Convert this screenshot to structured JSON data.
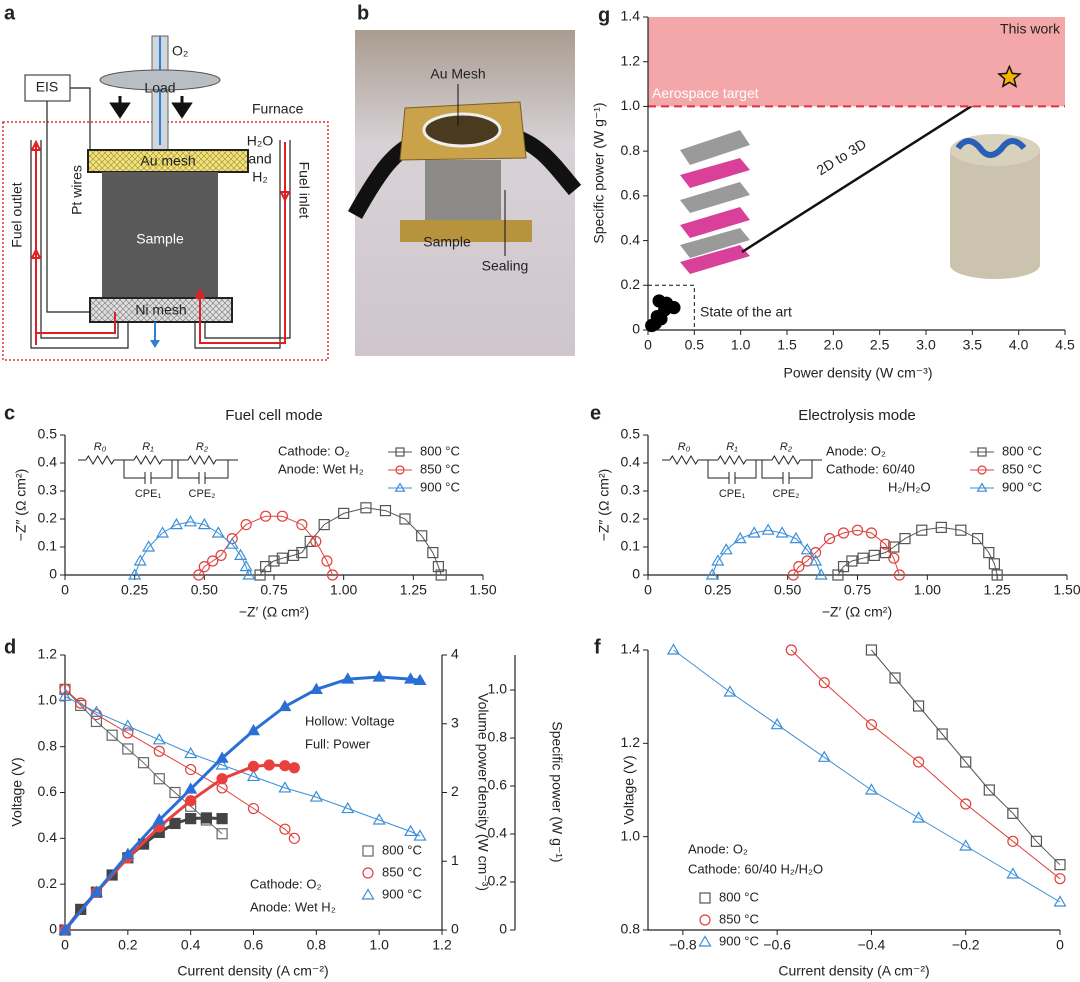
{
  "diagram_a": {
    "label": "a",
    "o2": "O₂",
    "load": "Load",
    "eis": "EIS",
    "furnace": "Furnace",
    "au_mesh": "Au mesh",
    "gas": [
      "H₂O",
      "and",
      "H₂"
    ],
    "fuel_outlet": "Fuel outlet",
    "pt_wires": "Pt wires",
    "fuel_inlet": "Fuel inlet",
    "sample": "Sample",
    "ni_mesh": "Ni mesh"
  },
  "photo_b": {
    "label": "b",
    "au_mesh": "Au Mesh",
    "sample": "Sample",
    "sealing": "Sealing"
  },
  "chart_data": [
    {
      "label": "g",
      "type": "scatter",
      "xlabel": "Power density (W cm⁻³)",
      "ylabel": "Specific power (W g⁻¹)",
      "xlim": [
        0,
        4.5
      ],
      "ylim": [
        0,
        1.4
      ],
      "xticks": [
        0,
        0.5,
        {
          "value": 1,
          "label": "1.0"
        },
        1.5,
        {
          "value": 2,
          "label": "2.0"
        },
        2.5,
        {
          "value": 3,
          "label": "3.0"
        },
        3.5,
        {
          "value": 4,
          "label": "4.0"
        },
        4.5
      ],
      "yticks": [
        0,
        0.2,
        0.4,
        0.6,
        0.8,
        {
          "value": 1,
          "label": "1.0"
        },
        1.2,
        1.4
      ],
      "target": 1.0,
      "target_label": "Aerospace target",
      "target_color": "#f4a7a9",
      "arrow_label": "2D to 3D",
      "series": [
        {
          "name": "State of the art",
          "color": "#000000",
          "marker": "dot",
          "x": [
            0.04,
            0.08,
            0.1,
            0.14,
            0.18,
            0.2,
            0.28,
            0.12
          ],
          "values": [
            0.02,
            0.03,
            0.06,
            0.05,
            0.09,
            0.12,
            0.1,
            0.13
          ]
        },
        {
          "name": "This work",
          "color": "#f5b400",
          "marker": "star",
          "x": [
            3.9
          ],
          "values": [
            1.13
          ]
        }
      ]
    },
    {
      "label": "c",
      "type": "line",
      "title": "Fuel cell mode",
      "xlabel": "−Z′ (Ω cm²)",
      "ylabel": "−Z″ (Ω cm²)",
      "xlim": [
        0,
        1.5
      ],
      "ylim": [
        0,
        0.5
      ],
      "xticks": [
        0,
        0.25,
        {
          "value": 0.5,
          "label": "0.50"
        },
        0.75,
        {
          "value": 1,
          "label": "1.00"
        },
        1.25,
        {
          "value": 1.5,
          "label": "1.50"
        }
      ],
      "yticks": [
        0,
        0.1,
        0.2,
        0.3,
        0.4,
        0.5
      ],
      "circuit": [
        "R₀",
        "R₁",
        "R₂",
        "CPE₁",
        "CPE₂"
      ],
      "notes": [
        "Cathode: O₂",
        "Anode: Wet H₂"
      ],
      "series": [
        {
          "name": "800 °C",
          "color": "#555555",
          "marker": "square",
          "x": [
            0.7,
            0.72,
            0.75,
            0.78,
            0.82,
            0.85,
            0.88,
            0.93,
            1.0,
            1.08,
            1.15,
            1.22,
            1.28,
            1.32,
            1.34,
            1.35
          ],
          "values": [
            0,
            0.03,
            0.05,
            0.06,
            0.07,
            0.08,
            0.12,
            0.18,
            0.22,
            0.24,
            0.23,
            0.2,
            0.14,
            0.08,
            0.03,
            0
          ]
        },
        {
          "name": "850 °C",
          "color": "#e0403c",
          "marker": "circle",
          "x": [
            0.48,
            0.5,
            0.53,
            0.56,
            0.6,
            0.65,
            0.72,
            0.78,
            0.85,
            0.9,
            0.94,
            0.96
          ],
          "values": [
            0,
            0.03,
            0.05,
            0.07,
            0.13,
            0.18,
            0.21,
            0.21,
            0.18,
            0.12,
            0.05,
            0
          ]
        },
        {
          "name": "900 °C",
          "color": "#3a8fd8",
          "marker": "triangle",
          "x": [
            0.25,
            0.27,
            0.3,
            0.35,
            0.4,
            0.45,
            0.5,
            0.55,
            0.6,
            0.63,
            0.65,
            0.66
          ],
          "values": [
            0,
            0.05,
            0.1,
            0.15,
            0.18,
            0.19,
            0.18,
            0.15,
            0.11,
            0.07,
            0.03,
            0
          ]
        }
      ]
    },
    {
      "label": "e",
      "type": "line",
      "title": "Electrolysis mode",
      "xlabel": "−Z′ (Ω cm²)",
      "ylabel": "−Z″ (Ω cm²)",
      "xlim": [
        0,
        1.5
      ],
      "ylim": [
        0,
        0.5
      ],
      "xticks": [
        0,
        0.25,
        {
          "value": 0.5,
          "label": "0.50"
        },
        0.75,
        {
          "value": 1,
          "label": "1.00"
        },
        1.25,
        {
          "value": 1.5,
          "label": "1.50"
        }
      ],
      "yticks": [
        0,
        0.1,
        0.2,
        0.3,
        0.4,
        0.5
      ],
      "circuit": [
        "R₀",
        "R₁",
        "R₂",
        "CPE₁",
        "CPE₂"
      ],
      "notes": [
        "Anode: O₂",
        "Cathode: 60/40",
        "H₂/H₂O"
      ],
      "series": [
        {
          "name": "800 °C",
          "color": "#555555",
          "marker": "square",
          "x": [
            0.68,
            0.7,
            0.73,
            0.77,
            0.81,
            0.85,
            0.88,
            0.92,
            0.98,
            1.05,
            1.12,
            1.18,
            1.22,
            1.24,
            1.25
          ],
          "values": [
            0,
            0.03,
            0.05,
            0.06,
            0.07,
            0.08,
            0.1,
            0.13,
            0.16,
            0.17,
            0.16,
            0.13,
            0.08,
            0.04,
            0
          ]
        },
        {
          "name": "850 °C",
          "color": "#e0403c",
          "marker": "circle",
          "x": [
            0.52,
            0.54,
            0.57,
            0.6,
            0.65,
            0.7,
            0.75,
            0.8,
            0.85,
            0.88,
            0.9
          ],
          "values": [
            0,
            0.03,
            0.05,
            0.08,
            0.13,
            0.15,
            0.16,
            0.15,
            0.11,
            0.06,
            0
          ]
        },
        {
          "name": "900 °C",
          "color": "#3a8fd8",
          "marker": "triangle",
          "x": [
            0.23,
            0.25,
            0.28,
            0.33,
            0.38,
            0.43,
            0.48,
            0.53,
            0.57,
            0.6,
            0.62
          ],
          "values": [
            0,
            0.05,
            0.09,
            0.13,
            0.15,
            0.16,
            0.15,
            0.13,
            0.09,
            0.05,
            0
          ]
        }
      ]
    },
    {
      "label": "d",
      "type": "line",
      "xlabel": "Current density (A cm⁻²)",
      "ylabel": "Voltage (V)",
      "y2label": "Volume power density (W cm⁻³)",
      "y3label": "Specific power (W g⁻¹)",
      "xlim": [
        0,
        1.2
      ],
      "ylim": [
        0,
        1.2
      ],
      "y2lim": [
        0,
        4
      ],
      "y3lim": [
        0,
        1.146
      ],
      "xticks": [
        0,
        0.2,
        0.4,
        0.6,
        0.8,
        {
          "value": 1,
          "label": "1.0"
        },
        1.2
      ],
      "yticks": [
        0,
        0.2,
        0.4,
        0.6,
        0.8,
        {
          "value": 1,
          "label": "1.0"
        },
        1.2
      ],
      "y2ticks": [
        0,
        1,
        2,
        3,
        4
      ],
      "y3ticks": [
        0,
        0.2,
        0.4,
        0.6,
        0.8,
        {
          "value": 1,
          "label": "1.0"
        }
      ],
      "notes": [
        "Hollow: Voltage",
        "Full: Power",
        "Cathode: O₂",
        "Anode: Wet H₂"
      ],
      "series": [
        {
          "name": "800 °C",
          "color": "#666666",
          "marker": "square",
          "x": [
            0,
            0.05,
            0.1,
            0.15,
            0.2,
            0.25,
            0.3,
            0.35,
            0.4,
            0.45,
            0.5
          ],
          "values": [
            1.05,
            0.98,
            0.91,
            0.85,
            0.79,
            0.73,
            0.66,
            0.6,
            0.54,
            0.48,
            0.42
          ]
        },
        {
          "name": "850 °C",
          "color": "#e0403c",
          "marker": "circle",
          "x": [
            0,
            0.05,
            0.1,
            0.2,
            0.3,
            0.4,
            0.5,
            0.6,
            0.7,
            0.73
          ],
          "values": [
            1.05,
            0.99,
            0.94,
            0.86,
            0.78,
            0.7,
            0.62,
            0.53,
            0.44,
            0.4
          ]
        },
        {
          "name": "900 °C",
          "color": "#3a8fd8",
          "marker": "triangle",
          "x": [
            0,
            0.1,
            0.2,
            0.3,
            0.4,
            0.5,
            0.6,
            0.7,
            0.8,
            0.9,
            1.0,
            1.1,
            1.13
          ],
          "values": [
            1.02,
            0.95,
            0.89,
            0.83,
            0.77,
            0.72,
            0.67,
            0.62,
            0.58,
            0.53,
            0.48,
            0.43,
            0.41
          ]
        },
        {
          "color": "#444444",
          "marker": "square",
          "filled": true,
          "axis": "y2",
          "x": [
            0,
            0.05,
            0.1,
            0.15,
            0.2,
            0.25,
            0.3,
            0.35,
            0.4,
            0.45,
            0.5
          ],
          "values": [
            0,
            0.3,
            0.55,
            0.8,
            1.05,
            1.25,
            1.42,
            1.55,
            1.62,
            1.63,
            1.62
          ]
        },
        {
          "color": "#e8403c",
          "marker": "circle",
          "filled": true,
          "axis": "y2",
          "x": [
            0,
            0.1,
            0.2,
            0.3,
            0.4,
            0.5,
            0.6,
            0.65,
            0.7,
            0.73
          ],
          "values": [
            0,
            0.55,
            1.05,
            1.5,
            1.88,
            2.2,
            2.38,
            2.4,
            2.39,
            2.36
          ]
        },
        {
          "color": "#2a6fd6",
          "marker": "triangle",
          "filled": true,
          "axis": "y2",
          "x": [
            0,
            0.1,
            0.2,
            0.3,
            0.4,
            0.5,
            0.6,
            0.7,
            0.8,
            0.9,
            1.0,
            1.1,
            1.13
          ],
          "values": [
            0,
            0.55,
            1.1,
            1.6,
            2.05,
            2.5,
            2.9,
            3.25,
            3.5,
            3.65,
            3.68,
            3.65,
            3.63
          ]
        }
      ]
    },
    {
      "label": "f",
      "type": "line",
      "xlabel": "Current density (A cm⁻²)",
      "ylabel": "Voltage (V)",
      "xlim": [
        -0.874,
        0
      ],
      "ylim": [
        0.8,
        1.4
      ],
      "xticks": [
        {
          "value": -0.8,
          "label": "−0.8"
        },
        {
          "value": -0.6,
          "label": "−0.6"
        },
        {
          "value": -0.4,
          "label": "−0.4"
        },
        {
          "value": -0.2,
          "label": "−0.2"
        },
        0
      ],
      "yticks": [
        0.8,
        {
          "value": 1,
          "label": "1.0"
        },
        1.2,
        1.4
      ],
      "notes": [
        "Anode: O₂",
        "Cathode: 60/40 H₂/H₂O"
      ],
      "series": [
        {
          "name": "800 °C",
          "color": "#555555",
          "marker": "square",
          "x": [
            -0.4,
            -0.35,
            -0.3,
            -0.25,
            -0.2,
            -0.15,
            -0.1,
            -0.05,
            0
          ],
          "values": [
            1.4,
            1.34,
            1.28,
            1.22,
            1.16,
            1.1,
            1.05,
            0.99,
            0.94
          ]
        },
        {
          "name": "850 °C",
          "color": "#e0403c",
          "marker": "circle",
          "x": [
            -0.57,
            -0.5,
            -0.4,
            -0.3,
            -0.2,
            -0.1,
            0
          ],
          "values": [
            1.4,
            1.33,
            1.24,
            1.16,
            1.07,
            0.99,
            0.91
          ]
        },
        {
          "name": "900 °C",
          "color": "#3a8fd8",
          "marker": "triangle",
          "x": [
            -0.82,
            -0.7,
            -0.6,
            -0.5,
            -0.4,
            -0.3,
            -0.2,
            -0.1,
            0
          ],
          "values": [
            1.4,
            1.31,
            1.24,
            1.17,
            1.1,
            1.04,
            0.98,
            0.92,
            0.86
          ]
        }
      ]
    }
  ]
}
